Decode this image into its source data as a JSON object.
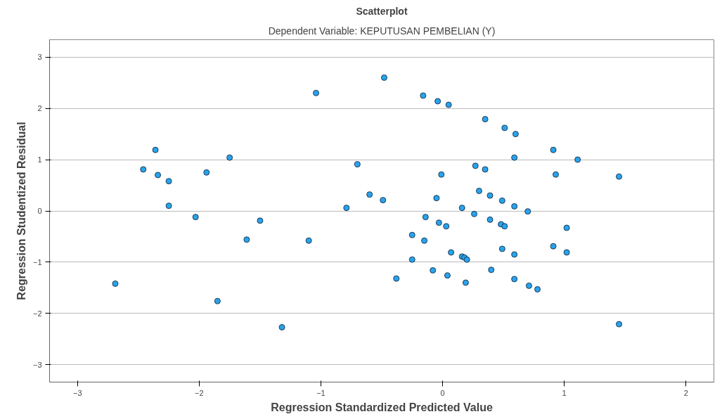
{
  "chart_data": {
    "type": "scatter",
    "title": "Scatterplot",
    "subtitle": "Dependent Variable: KEPUTUSAN PEMBELIAN (Y)",
    "xlabel": "Regression Standardized Predicted Value",
    "ylabel": "Regression Studentized Residual",
    "xlim": [
      -3.23,
      2.23
    ],
    "ylim": [
      -3.34,
      3.34
    ],
    "xticks": [
      -3,
      -2,
      -1,
      0,
      1,
      2
    ],
    "yticks": [
      -3,
      -2,
      -1,
      0,
      1,
      2,
      3
    ],
    "grid": "y",
    "marker": "circle",
    "series": [
      {
        "color": "#29a3ec",
        "x": [
          -2.69,
          -2.46,
          -2.36,
          -2.34,
          -2.25,
          -2.25,
          -2.03,
          -1.94,
          -1.85,
          -1.75,
          -1.61,
          -1.5,
          -1.32,
          -1.1,
          -1.04,
          -0.79,
          -0.7,
          -0.6,
          -0.49,
          -0.48,
          -0.38,
          -0.25,
          -0.25,
          -0.16,
          -0.15,
          -0.14,
          -0.08,
          -0.05,
          -0.04,
          -0.03,
          -0.01,
          0.03,
          0.04,
          0.05,
          0.07,
          0.16,
          0.16,
          0.18,
          0.19,
          0.2,
          0.26,
          0.27,
          0.3,
          0.35,
          0.35,
          0.39,
          0.39,
          0.4,
          0.48,
          0.49,
          0.49,
          0.51,
          0.51,
          0.59,
          0.59,
          0.59,
          0.59,
          0.6,
          0.7,
          0.71,
          0.78,
          0.91,
          0.91,
          0.93,
          1.02,
          1.02,
          1.11,
          1.45,
          1.45
        ],
        "values": [
          -1.42,
          0.81,
          1.19,
          0.7,
          0.58,
          0.1,
          -0.12,
          0.75,
          -1.76,
          1.04,
          -0.56,
          -0.19,
          -2.27,
          -0.58,
          2.3,
          0.06,
          0.91,
          0.32,
          0.21,
          2.6,
          -1.32,
          -0.47,
          -0.95,
          2.25,
          -0.58,
          -0.12,
          -1.16,
          0.25,
          2.14,
          -0.23,
          0.71,
          -0.3,
          -1.26,
          2.07,
          -0.81,
          0.06,
          -0.89,
          -0.91,
          -1.4,
          -0.95,
          -0.06,
          0.88,
          0.39,
          1.79,
          0.81,
          0.3,
          -0.17,
          -1.15,
          -0.26,
          0.2,
          -0.74,
          1.62,
          -0.3,
          1.04,
          0.09,
          -0.85,
          -1.33,
          1.5,
          -0.01,
          -1.46,
          -1.53,
          1.19,
          -0.69,
          0.71,
          -0.33,
          -0.81,
          1.0,
          0.67,
          -2.21
        ]
      }
    ]
  }
}
